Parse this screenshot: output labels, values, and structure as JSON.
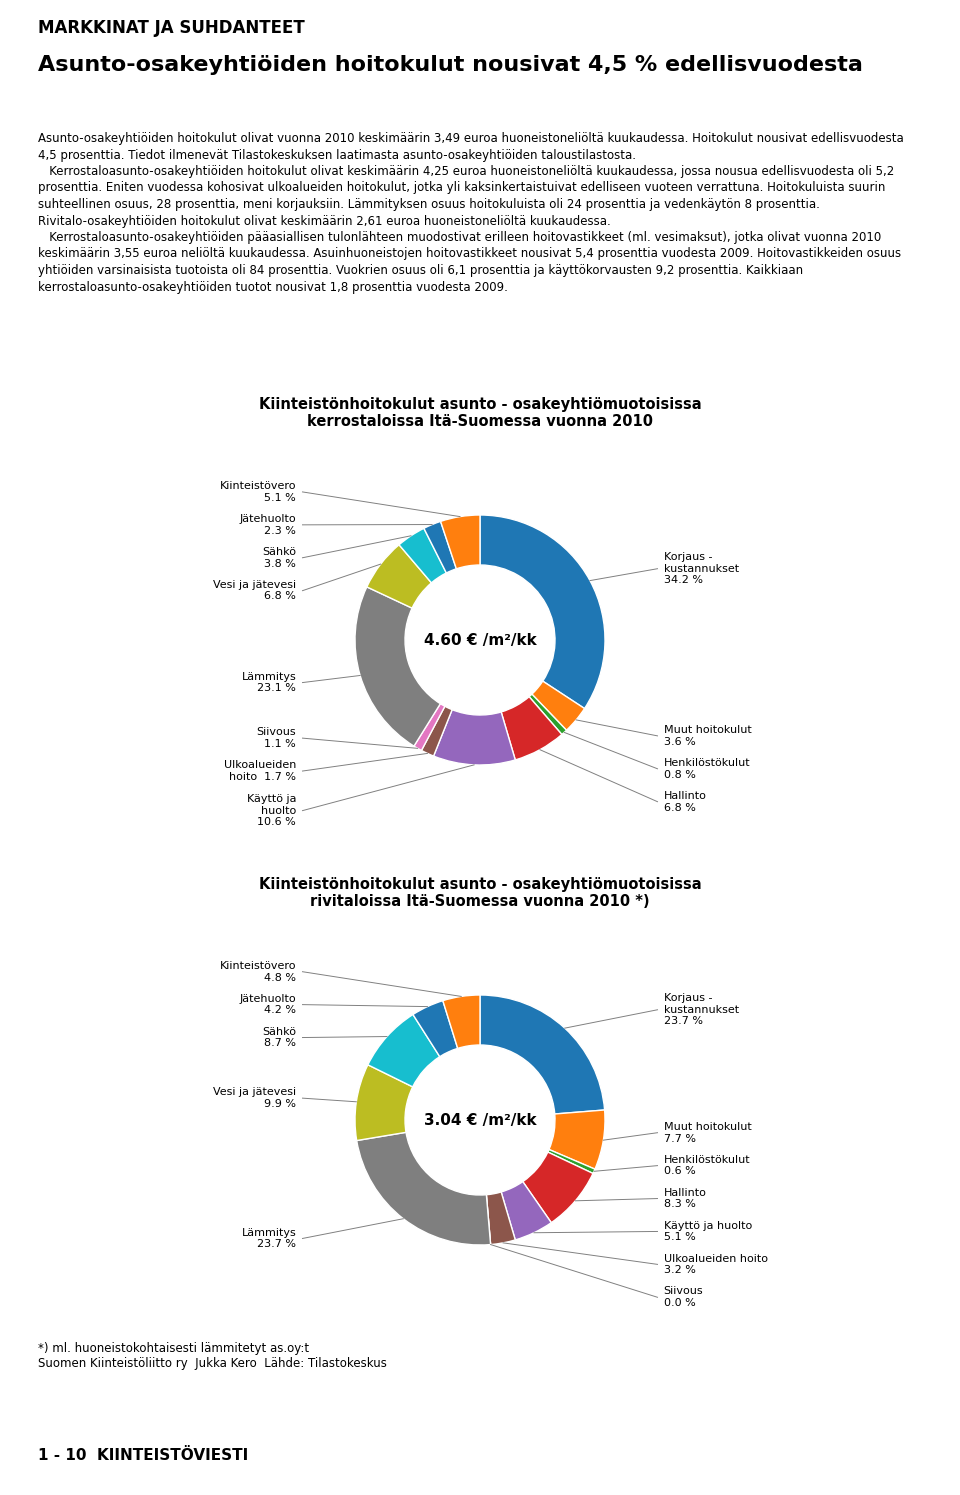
{
  "title": "Asunto-osakeyhtiöiden hoitokulut nousivat 4,5 % edellisvuodesta",
  "subtitle": "MARKKINAT JA SUHDANTEET",
  "annotations": [
    "Asunto-osakeyhtiöiden hoitokulut olivat vuonna 2010 keskimäärin 3,49 euroa huoneistoneliöltä kuukaudessa. Hoitokulut nousivat edellisvuodesta 4,5 prosenttia. Tiedot ilmenevät Tilastokeskuksen laatimasta asunto-osakeyhtiöiden taloustilastosta.\n   Kerrostaloasunto-osakeyhtiöiden hoitokulut olivat keskimäärin 4,25 euroa huoneistoneliöltä kuukaudessa, jossa nousua edellisvuodesta oli 5,2 prosenttia. Eniten vuodessa kohosivat ulkoalueiden hoitokulut, jotka yli kaksinkertaistuivat edelliseen vuoteen verrattuna. Hoitokuluista suurin suhteellinen osuus, 28 prosenttia, meni korjauksiin. Lämmityksen osuus hoitokuluista oli 24 prosenttia ja vedenkäytön 8 prosenttia. Rivitalo-osakeyhtiöiden hoitokulut olivat keskimäärin 2,61 euroa huoneistoneliöltä kuukaudessa.\n   Kerrostaloasunto-osakeyhtiöiden pääasiallisen tulonlähteen muodostivat erilleen hoitovastikkeet (ml. vesimaksut), jotka olivat vuonna 2010 keskimäärin 3,55 euroa neliöltä kuukaudessa. Asuinhuoneistojen hoitovastikkeet nousivat 5,4 prosenttia vuodesta 2009. Hoitovastikkeiden osuus yhtiöiden varsinaisista tuotoista oli 84 prosenttia. Vuokrien osuus oli 6,1 prosenttia ja käyttökorvausten 9,2 prosenttia. Kaikkiaan kerrostaloasunto-osakeyhtiöiden tuotot nousivat 1,8 prosenttia vuodesta 2009.",
    "*) ml. huoneistokohtaisesti lämmitetyt as.oy:t\nSuomen Kiinteistöliitto ry  Jukka Kero  Lähde: Tilastokeskus",
    "1 - 10  KIINTEISTÖVIESTI"
  ],
  "chart_data": [
    {
      "type": "pie",
      "title": "Kiinteistönhoitokulut asunto - osakeyhtiömuotoisissa\nkerrostaloissa Itä-Suomessa vuonna 2010",
      "categories": [
        "Korjaus -\nkustannukset\n34.2 %",
        "Muut hoitokulut\n3.6 %",
        "Henkilöstökulut\n0.8 %",
        "Hallinto\n6.8 %",
        "Käyttö ja\nhuolto\n10.6 %",
        "Ulkoalueiden\nhoito  1.7 %",
        "Siivous\n1.1 %",
        "Lämmitys\n23.1 %",
        "Vesi ja jätevesi\n6.8 %",
        "Sähkö\n3.8 %",
        "Jätehuolto\n2.3 %",
        "Kiinteistövero\n5.1 %"
      ],
      "values": [
        34.2,
        3.6,
        0.8,
        6.8,
        10.6,
        1.7,
        1.1,
        23.1,
        6.8,
        3.8,
        2.3,
        5.1
      ],
      "annotations": [
        "4.60 € /m²/kk"
      ]
    },
    {
      "type": "pie",
      "title": "Kiinteistönhoitokulut asunto - osakeyhtiömuotoisissa\nrivitaloissa Itä-Suomessa vuonna 2010 *)",
      "categories": [
        "Korjaus -\nkustannukset\n23.7 %",
        "Muut hoitokulut\n7.7 %",
        "Henkilöstökulut\n0.6 %",
        "Hallinto\n8.3 %",
        "Käyttö ja huolto\n5.1 %",
        "Ulkoalueiden hoito\n3.2 %",
        "Siivous\n0.0 %",
        "Lämmitys\n23.7 %",
        "Vesi ja jätevesi\n9.9 %",
        "Sähkö\n8.7 %",
        "Jätehuolto\n4.2 %",
        "Kiinteistövero\n4.8 %"
      ],
      "values": [
        23.7,
        7.7,
        0.6,
        8.3,
        5.1,
        3.2,
        0.0,
        23.7,
        9.9,
        8.7,
        4.2,
        4.8
      ],
      "annotations": [
        "3.04 € /m²/kk"
      ]
    }
  ]
}
